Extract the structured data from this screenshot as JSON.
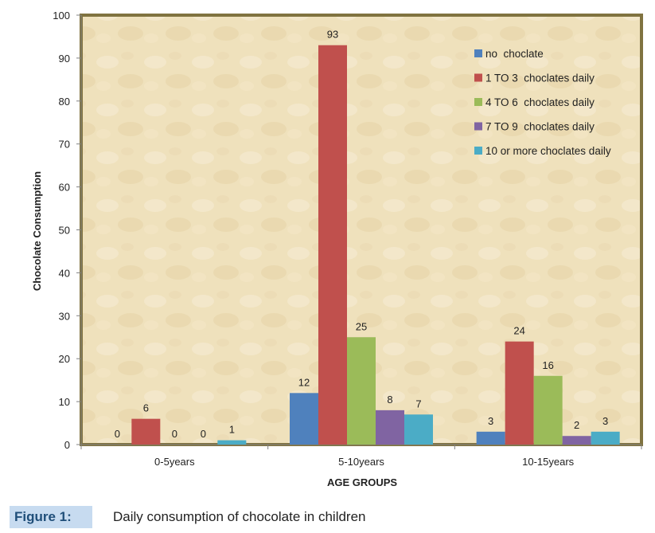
{
  "chart_data": {
    "type": "bar",
    "categories": [
      "0-5years",
      "5-10years",
      "10-15years"
    ],
    "series": [
      {
        "name": "no  choclate",
        "color": "#4f81bd",
        "values": [
          0,
          12,
          3
        ]
      },
      {
        "name": "1 TO 3  choclates daily",
        "color": "#c0504d",
        "values": [
          6,
          93,
          24
        ]
      },
      {
        "name": "4 TO 6  choclates daily",
        "color": "#9bbb59",
        "values": [
          0,
          25,
          16
        ]
      },
      {
        "name": "7 TO 9  choclates daily",
        "color": "#8064a2",
        "values": [
          0,
          8,
          2
        ]
      },
      {
        "name": "10 or more choclates daily",
        "color": "#4bacc6",
        "values": [
          1,
          7,
          3
        ]
      }
    ],
    "xlabel": "AGE GROUPS",
    "ylabel": "Chocolate Consumption",
    "ylim": [
      0,
      100
    ],
    "yticks": [
      0,
      10,
      20,
      30,
      40,
      50,
      60,
      70,
      80,
      90,
      100
    ],
    "grid": false,
    "legend_position": "top-right",
    "data_labels": true
  },
  "caption": {
    "label": "Figure 1:",
    "text": "Daily consumption of chocolate in children"
  }
}
